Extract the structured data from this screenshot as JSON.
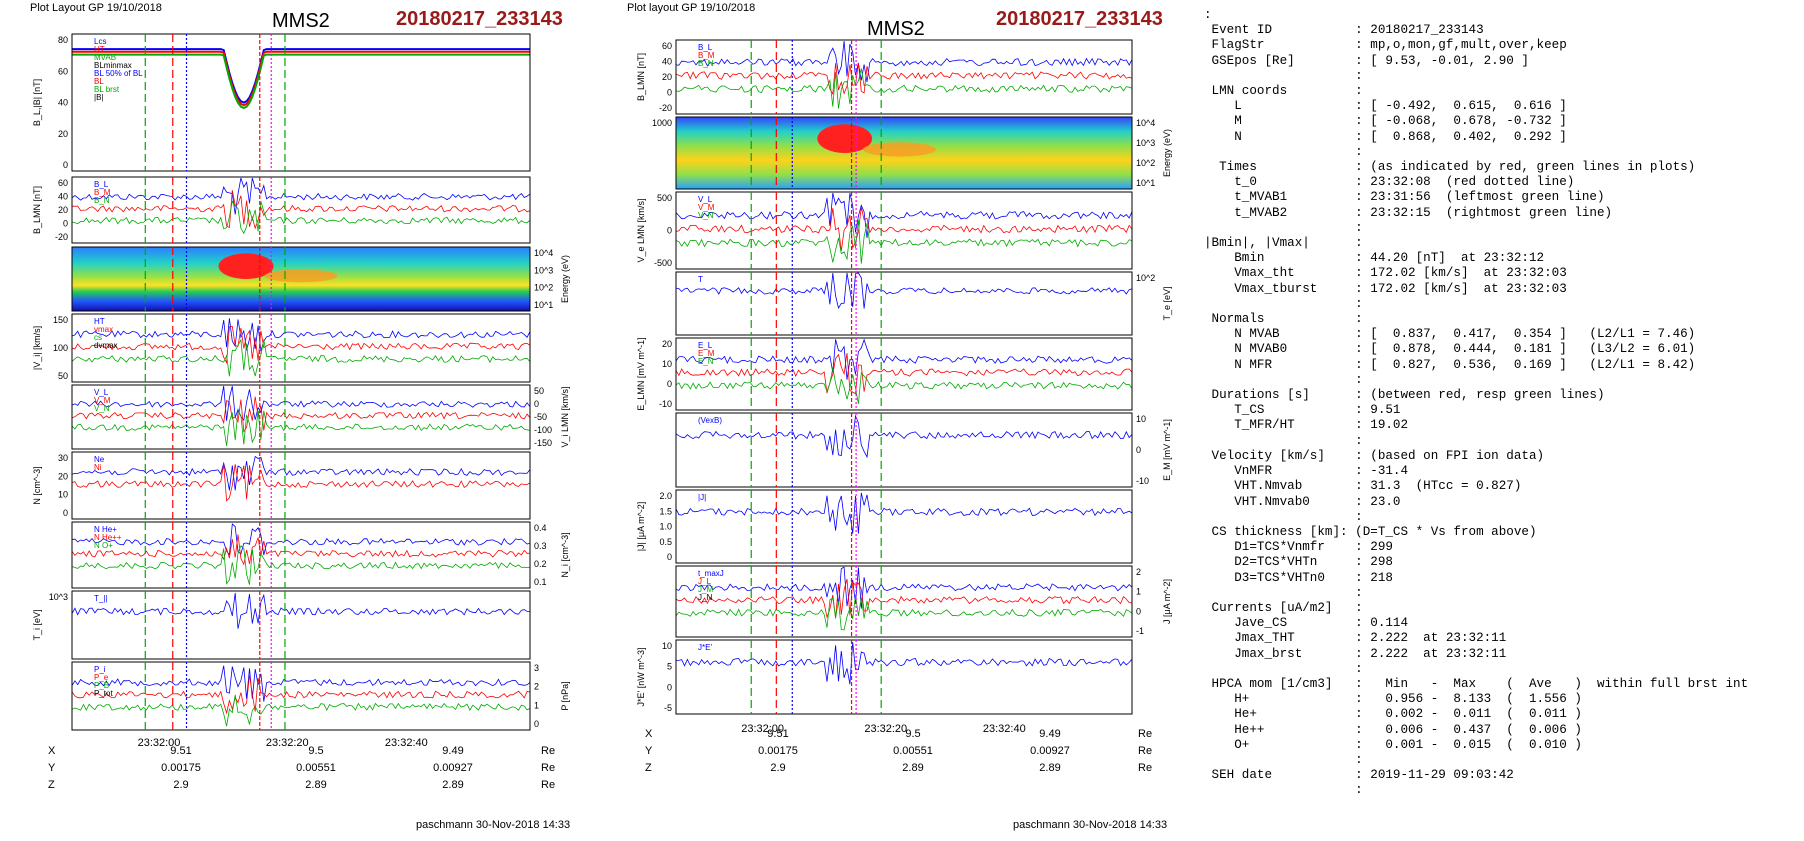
{
  "left": {
    "header": "Plot Layout GP 19/10/2018",
    "spacecraft": "MMS2",
    "event": "20180217_233143",
    "footer": "paschmann 30-Nov-2018 14:33",
    "time_ticks": [
      "23:32:00",
      "23:32:20",
      "23:32:40"
    ],
    "coords": [
      {
        "label": "X",
        "values": [
          "9.51",
          "9.5",
          "9.49"
        ],
        "unit": "Re"
      },
      {
        "label": "Y",
        "values": [
          "0.00175",
          "0.00551",
          "0.00927"
        ],
        "unit": "Re"
      },
      {
        "label": "Z",
        "values": [
          "2.9",
          "2.89",
          "2.89"
        ],
        "unit": "Re"
      }
    ]
  },
  "right": {
    "header": "Plot layout GP 19/10/2018",
    "spacecraft": "MMS2",
    "event": "20180217_233143",
    "footer": "paschmann 30-Nov-2018 14:33",
    "time_ticks": [
      "23:32:00",
      "23:32:20",
      "23:32:40"
    ],
    "coords": [
      {
        "label": "X",
        "values": [
          "9.51",
          "9.5",
          "9.49"
        ],
        "unit": "Re"
      },
      {
        "label": "Y",
        "values": [
          "0.00175",
          "0.00551",
          "0.00927"
        ],
        "unit": "Re"
      },
      {
        "label": "Z",
        "values": [
          "2.9",
          "2.89",
          "2.89"
        ],
        "unit": "Re"
      }
    ]
  },
  "colors": {
    "red": "#ff0000",
    "green": "#00aa00",
    "blue": "#0000ff",
    "magenta": "#ff00ff",
    "dark_red": "#9a1a1a"
  },
  "summary_lines": [
    ":",
    " Event ID           : 20180217_233143",
    " FlagStr            : mp,o,mon,gf,mult,over,keep",
    " GSEpos [Re]        : [ 9.53, -0.01, 2.90 ]",
    "                    :",
    " LMN coords         :",
    "    L               : [ -0.492,  0.615,  0.616 ]",
    "    M               : [ -0.068,  0.678, -0.732 ]",
    "    N               : [  0.868,  0.402,  0.292 ]",
    "                    :",
    "  Times             : (as indicated by red, green lines in plots)",
    "    t_0             : 23:32:08  (red dotted line)",
    "    t_MVAB1         : 23:31:56  (leftmost green line)",
    "    t_MVAB2         : 23:32:15  (rightmost green line)",
    "                    :",
    "|Bmin|, |Vmax|      :",
    "    Bmin            : 44.20 [nT]  at 23:32:12",
    "    Vmax_tht        : 172.02 [km/s]  at 23:32:03",
    "    Vmax_tburst     : 172.02 [km/s]  at 23:32:03",
    "                    :",
    " Normals            :",
    "    N MVAB          : [  0.837,  0.417,  0.354 ]   (L2/L1 = 7.46)",
    "    N MVAB0         : [  0.878,  0.444,  0.181 ]   (L3/L2 = 6.01)",
    "    N MFR           : [  0.827,  0.536,  0.169 ]   (L2/L1 = 8.42)",
    "                    :",
    " Durations [s]      : (between red, resp green lines)",
    "    T_CS            : 9.51",
    "    T_MFR/HT        : 19.02",
    "                    :",
    " Velocity [km/s]    : (based on FPI ion data)",
    "    VnMFR           : -31.4",
    "    VHT.Nmvab       : 31.3  (HTcc = 0.827)",
    "    VHT.Nmvab0      : 23.0",
    "                    :",
    " CS thickness [km]: (D=T_CS * Vs from above)",
    "    D1=TCS*Vnmfr    : 299",
    "    D2=TCS*VHTn     : 298",
    "    D3=TCS*VHTn0    : 218",
    "                    :",
    " Currents [uA/m2]   :",
    "    Jave_CS         : 0.114",
    "    Jmax_THT        : 2.222  at 23:32:11",
    "    Jmax_brst       : 2.222  at 23:32:11",
    "                    :",
    " HPCA mom [1/cm3]   :   Min   -  Max    (  Ave   )  within full brst int",
    "    H+              :   0.956 -  8.133  (  1.556 )",
    "    He+             :   0.002 -  0.011  (  0.011 )",
    "    He++            :   0.006 -  0.437  (  0.006 )",
    "    O+              :   0.001 -  0.015  (  0.010 )",
    "                    :",
    " SEH date           : 2019-11-29 09:03:42",
    "                    :"
  ],
  "panels_left": [
    {
      "id": "bl",
      "ylabel": "B_L,|B| [nT]",
      "yticks": [
        "80",
        "60",
        "40",
        "20",
        "0"
      ],
      "rticks": [],
      "rlabel": "",
      "legend": [
        "Lcs",
        "HT",
        "MVAB",
        "BLminmax",
        "BL 50% of BL",
        "BL",
        "BL brst",
        "|B|"
      ],
      "type": "line"
    },
    {
      "id": "blmn",
      "ylabel": "B_LMN [nT]",
      "yticks": [
        "60",
        "40",
        "20",
        "0",
        "-20"
      ],
      "rticks": [],
      "rlabel": "",
      "legend": [
        "B_L",
        "B_M",
        "B_N"
      ],
      "type": "line"
    },
    {
      "id": "spec",
      "ylabel": "",
      "yticks": [],
      "rticks": [
        "10^4",
        "10^3",
        "10^2",
        "10^1"
      ],
      "rlabel": "Energy (eV)",
      "legend": [],
      "type": "spectrogram"
    },
    {
      "id": "vi",
      "ylabel": "|V_i| [km/s]",
      "yticks": [
        "150",
        "100",
        "50"
      ],
      "rticks": [],
      "rlabel": "",
      "legend": [
        "HT",
        "vmax",
        "cs",
        "dvmax"
      ],
      "type": "line"
    },
    {
      "id": "vilmn",
      "ylabel": "",
      "yticks": [],
      "rticks": [
        "50",
        "0",
        "-50",
        "-100",
        "-150"
      ],
      "rlabel": "V_i LMN [km/s]",
      "legend": [
        "V_L",
        "V_M",
        "V_N"
      ],
      "type": "line"
    },
    {
      "id": "n",
      "ylabel": "N [cm^-3]",
      "yticks": [
        "30",
        "20",
        "10",
        "0"
      ],
      "rticks": [],
      "rlabel": "",
      "legend": [
        "Ne",
        "Ni"
      ],
      "type": "line"
    },
    {
      "id": "hpca",
      "ylabel": "",
      "yticks": [],
      "rticks": [
        "0.4",
        "0.3",
        "0.2",
        "0.1"
      ],
      "rlabel": "N_i [cm^-3]",
      "legend": [
        "N He+",
        "N He++",
        "N O+"
      ],
      "type": "line"
    },
    {
      "id": "ti",
      "ylabel": "T_i [eV]",
      "yticks": [
        "10^3"
      ],
      "rticks": [],
      "rlabel": "",
      "legend": [
        "T_||"
      ],
      "type": "line"
    },
    {
      "id": "p",
      "ylabel": "",
      "yticks": [],
      "rticks": [
        "3",
        "2",
        "1",
        "0"
      ],
      "rlabel": "P [nPa]",
      "legend": [
        "P_i",
        "P_e",
        "P_B",
        "P_tot"
      ],
      "type": "line"
    }
  ],
  "panels_right": [
    {
      "id": "blmn",
      "ylabel": "B_LMN [nT]",
      "yticks": [
        "60",
        "40",
        "20",
        "0",
        "-20"
      ],
      "rticks": [],
      "rlabel": "",
      "legend": [
        "B_L",
        "B_M",
        "B_N"
      ],
      "type": "line"
    },
    {
      "id": "spec",
      "ylabel": "",
      "yticks": [
        "1000"
      ],
      "rticks": [
        "10^4",
        "10^3",
        "10^2",
        "10^1"
      ],
      "rlabel": "Energy (eV)",
      "legend": [],
      "type": "spectrogram"
    },
    {
      "id": "ve",
      "ylabel": "V_e LMN [km/s]",
      "yticks": [
        "500",
        "0",
        "-500"
      ],
      "rticks": [],
      "rlabel": "",
      "legend": [
        "V_L",
        "V_M",
        "V_N"
      ],
      "type": "line"
    },
    {
      "id": "te",
      "ylabel": "",
      "yticks": [],
      "rticks": [
        "10^2"
      ],
      "rlabel": "T_e [eV]",
      "legend": [
        "T"
      ],
      "type": "line"
    },
    {
      "id": "e",
      "ylabel": "E_LMN [mV m^-1]",
      "yticks": [
        "20",
        "10",
        "0",
        "-10"
      ],
      "rticks": [],
      "rlabel": "",
      "legend": [
        "E_L",
        "E_M",
        "E_N"
      ],
      "type": "line"
    },
    {
      "id": "em",
      "ylabel": "",
      "yticks": [],
      "rticks": [
        "10",
        "0",
        "-10"
      ],
      "rlabel": "E_M [mV m^-1]",
      "legend": [
        "(VexB)"
      ],
      "type": "line"
    },
    {
      "id": "j",
      "ylabel": "|J| [μA m^-2]",
      "yticks": [
        "2.0",
        "1.5",
        "1.0",
        "0.5",
        "0"
      ],
      "rticks": [],
      "rlabel": "",
      "legend": [
        "|J|"
      ],
      "type": "line"
    },
    {
      "id": "jlmn",
      "ylabel": "",
      "yticks": [],
      "rticks": [
        "2",
        "1",
        "0",
        "-1"
      ],
      "rlabel": "J [μA m^-2]",
      "legend": [
        "t_maxJ",
        "J_L",
        "J_M",
        "J_N"
      ],
      "type": "line"
    },
    {
      "id": "je",
      "ylabel": "J*E' [nW m^-3]",
      "yticks": [
        "10",
        "5",
        "0",
        "-5"
      ],
      "rticks": [],
      "rlabel": "",
      "legend": [
        "J*E'"
      ],
      "type": "line"
    }
  ],
  "chart_data": [
    {
      "type": "line",
      "title": "MMS2",
      "series": [
        {
          "name": "B_L",
          "values": [
            74,
            75,
            76,
            75,
            74,
            73,
            72,
            70,
            66,
            60,
            50,
            44,
            58,
            68,
            72,
            73,
            73,
            74,
            74,
            73
          ]
        },
        {
          "name": "|B|",
          "values": [
            76,
            76,
            77,
            76,
            75,
            74,
            73,
            71,
            68,
            62,
            52,
            46,
            60,
            69,
            72,
            73,
            74,
            74,
            74,
            73
          ]
        }
      ],
      "ylim": [
        0,
        80
      ]
    },
    {
      "type": "line",
      "title": "MMS2",
      "series": [
        {
          "name": "V_e",
          "values": [
            0,
            100,
            -200,
            150,
            -100,
            200,
            -300,
            500,
            -400,
            300,
            -200,
            100,
            0
          ]
        }
      ],
      "ylim": [
        -750,
        750
      ]
    }
  ]
}
